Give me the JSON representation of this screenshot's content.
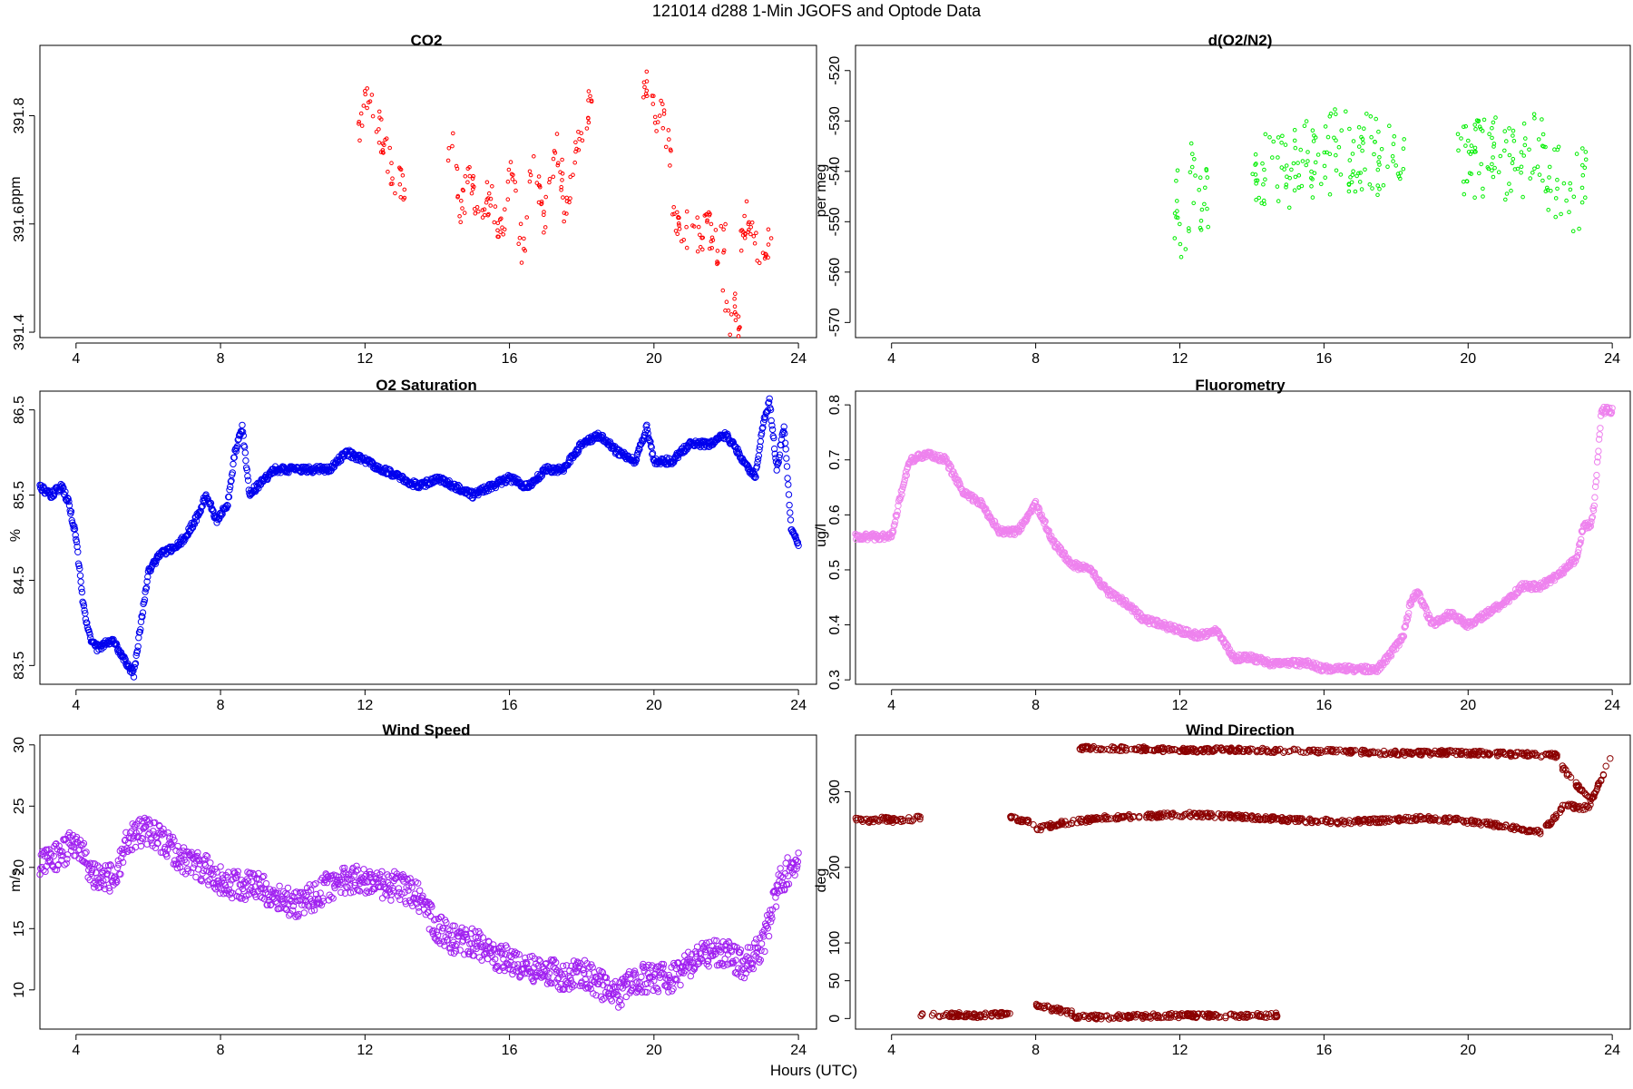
{
  "figure": {
    "title": "121014   d288   1-Min  JGOFS and Optode Data",
    "xlabel": "Hours (UTC)"
  },
  "chart_data": [
    {
      "type": "scatter",
      "title": "CO2",
      "ylabel": "ppm",
      "xlim": [
        3,
        24.5
      ],
      "ylim": [
        391.39,
        391.93
      ],
      "xticks": [
        4,
        8,
        12,
        16,
        20,
        24
      ],
      "yticks": [
        391.4,
        391.6,
        391.8
      ],
      "ytick_labels": [
        "391.4",
        "391.6",
        "391.8"
      ],
      "marker": "small-circle",
      "color": "#ff0000",
      "point_size": 1.8,
      "series": [
        {
          "segments": [
            {
              "x0": 11.8,
              "x1": 13.1,
              "y": [
                391.77,
                391.8,
                391.84,
                391.82,
                391.78,
                391.74,
                391.71,
                391.69,
                391.67,
                391.66
              ]
            },
            {
              "x0": 14.3,
              "x1": 15.4,
              "y": [
                391.7,
                391.76,
                391.68,
                391.62,
                391.66,
                391.72,
                391.63,
                391.6,
                391.64,
                391.66
              ]
            },
            {
              "x0": 15.4,
              "x1": 16.5,
              "y": [
                391.62,
                391.66,
                391.6,
                391.58,
                391.63,
                391.7,
                391.66,
                391.58,
                391.55,
                391.62
              ]
            },
            {
              "x0": 16.5,
              "x1": 17.5,
              "y": [
                391.64,
                391.68,
                391.72,
                391.66,
                391.6,
                391.65,
                391.7,
                391.75,
                391.72,
                391.66
              ]
            },
            {
              "x0": 17.5,
              "x1": 18.3,
              "y": [
                391.62,
                391.66,
                391.7,
                391.74,
                391.78,
                391.81,
                391.84
              ]
            },
            {
              "x0": 19.7,
              "x1": 20.5,
              "y": [
                391.86,
                391.84,
                391.8,
                391.82,
                391.76,
                391.72
              ]
            },
            {
              "x0": 20.5,
              "x1": 22.0,
              "y": [
                391.64,
                391.6,
                391.58,
                391.62,
                391.57,
                391.6,
                391.58,
                391.55,
                391.6
              ]
            },
            {
              "x0": 21.9,
              "x1": 22.4,
              "y": [
                391.46,
                391.42,
                391.44,
                391.41
              ]
            },
            {
              "x0": 22.4,
              "x1": 23.3,
              "y": [
                391.58,
                391.62,
                391.58,
                391.55,
                391.57,
                391.53
              ]
            }
          ],
          "noise": 0.035
        }
      ]
    },
    {
      "type": "scatter",
      "title": "d(O2/N2)",
      "ylabel": "per meg",
      "xlim": [
        3,
        24.5
      ],
      "ylim": [
        -573,
        -515
      ],
      "xticks": [
        4,
        8,
        12,
        16,
        20,
        24
      ],
      "yticks": [
        -570,
        -560,
        -550,
        -540,
        -530,
        -520
      ],
      "ytick_labels": [
        "-570",
        "-560",
        "-550",
        "-540",
        "-530",
        "-520"
      ],
      "marker": "small-circle",
      "color": "#00ee00",
      "point_size": 1.8,
      "series": [
        {
          "segments": [
            {
              "x0": 11.8,
              "x1": 12.8,
              "y": [
                -545,
                -548,
                -552,
                -542,
                -540,
                -550,
                -546
              ]
            },
            {
              "x0": 14.0,
              "x1": 16.0,
              "y": [
                -545,
                -540,
                -538,
                -536,
                -542,
                -540,
                -535,
                -538,
                -541,
                -539
              ]
            },
            {
              "x0": 16.0,
              "x1": 18.3,
              "y": [
                -538,
                -536,
                -533,
                -540,
                -537,
                -535,
                -539,
                -536,
                -538,
                -540
              ]
            },
            {
              "x0": 19.7,
              "x1": 23.3,
              "y": [
                -540,
                -538,
                -537,
                -536,
                -539,
                -538,
                -535,
                -540,
                -542,
                -544,
                -543
              ]
            }
          ],
          "noise": 8
        }
      ]
    },
    {
      "type": "scatter",
      "title": "O2 Saturation",
      "ylabel": "%",
      "xlim": [
        3,
        24.5
      ],
      "ylim": [
        83.28,
        86.72
      ],
      "xticks": [
        4,
        8,
        12,
        16,
        20,
        24
      ],
      "yticks": [
        83.5,
        84.5,
        85.5,
        86.5
      ],
      "ytick_labels": [
        "83.5",
        "84.5",
        "85.5",
        "86.5"
      ],
      "marker": "circle",
      "color": "#0000ee",
      "point_size": 3.2,
      "series": [
        {
          "x": [
            3.0,
            3.3,
            3.6,
            3.8,
            4.0,
            4.2,
            4.4,
            4.6,
            5.0,
            5.3,
            5.6,
            5.8,
            6.0,
            6.3,
            6.8,
            7.0,
            7.3,
            7.6,
            7.9,
            8.2,
            8.4,
            8.6,
            8.8,
            9.0,
            9.5,
            10.0,
            11.0,
            11.5,
            12.0,
            12.5,
            13.0,
            13.5,
            14.0,
            14.5,
            15.0,
            15.5,
            16.0,
            16.5,
            17.0,
            17.5,
            18.0,
            18.5,
            19.0,
            19.5,
            19.8,
            20.0,
            20.5,
            21.0,
            21.5,
            22.0,
            22.5,
            22.8,
            23.0,
            23.2,
            23.4,
            23.6,
            23.8,
            24.0
          ],
          "y": [
            85.6,
            85.5,
            85.6,
            85.4,
            85.0,
            84.2,
            83.8,
            83.7,
            83.8,
            83.6,
            83.4,
            84.0,
            84.6,
            84.8,
            84.9,
            85.0,
            85.2,
            85.5,
            85.2,
            85.4,
            86.0,
            86.3,
            85.5,
            85.6,
            85.8,
            85.8,
            85.8,
            86.0,
            85.9,
            85.8,
            85.7,
            85.6,
            85.7,
            85.6,
            85.5,
            85.6,
            85.7,
            85.6,
            85.8,
            85.8,
            86.1,
            86.2,
            86.0,
            85.9,
            86.3,
            85.9,
            85.9,
            86.1,
            86.1,
            86.2,
            85.9,
            85.7,
            86.3,
            86.6,
            85.8,
            86.3,
            85.1,
            84.9
          ],
          "noise": 0.04
        }
      ]
    },
    {
      "type": "scatter",
      "title": "Fluorometry",
      "ylabel": "ug/l",
      "xlim": [
        3,
        24.5
      ],
      "ylim": [
        0.292,
        0.825
      ],
      "xticks": [
        4,
        8,
        12,
        16,
        20,
        24
      ],
      "yticks": [
        0.3,
        0.4,
        0.5,
        0.6,
        0.7,
        0.8
      ],
      "ytick_labels": [
        "0.3",
        "0.4",
        "0.5",
        "0.6",
        "0.7",
        "0.8"
      ],
      "marker": "circle",
      "color": "#ee82ee",
      "point_size": 3.2,
      "series": [
        {
          "x": [
            3.0,
            4.0,
            4.2,
            4.5,
            5.0,
            5.5,
            6.0,
            6.5,
            7.0,
            7.5,
            8.0,
            8.5,
            9.0,
            9.5,
            10.0,
            10.5,
            11.0,
            11.5,
            12.0,
            12.5,
            13.0,
            13.5,
            14.0,
            14.5,
            15.0,
            15.5,
            16.0,
            16.5,
            17.0,
            17.5,
            18.0,
            18.2,
            18.4,
            18.6,
            19.0,
            19.5,
            20.0,
            20.5,
            21.0,
            21.5,
            22.0,
            22.5,
            23.0,
            23.2,
            23.4,
            23.5,
            23.7,
            24.0
          ],
          "y": [
            0.56,
            0.56,
            0.62,
            0.7,
            0.71,
            0.7,
            0.64,
            0.62,
            0.57,
            0.57,
            0.62,
            0.55,
            0.51,
            0.5,
            0.46,
            0.44,
            0.41,
            0.4,
            0.39,
            0.38,
            0.39,
            0.34,
            0.34,
            0.33,
            0.33,
            0.33,
            0.32,
            0.32,
            0.32,
            0.32,
            0.36,
            0.38,
            0.44,
            0.46,
            0.4,
            0.42,
            0.4,
            0.42,
            0.44,
            0.47,
            0.47,
            0.49,
            0.52,
            0.58,
            0.58,
            0.62,
            0.79,
            0.79
          ],
          "noise": 0.006
        }
      ]
    },
    {
      "type": "scatter",
      "title": "Wind Speed",
      "ylabel": "m/s",
      "xlim": [
        3,
        24.5
      ],
      "ylim": [
        6.8,
        30.8
      ],
      "xticks": [
        4,
        8,
        12,
        16,
        20,
        24
      ],
      "yticks": [
        10,
        15,
        20,
        25,
        30
      ],
      "ytick_labels": [
        "10",
        "15",
        "20",
        "25",
        "30"
      ],
      "marker": "circle",
      "color": "#a020f0",
      "point_size": 3.2,
      "series": [
        {
          "x": [
            3.0,
            4.0,
            4.5,
            5.0,
            5.5,
            6.0,
            6.5,
            7.0,
            7.5,
            8.0,
            8.5,
            9.0,
            9.5,
            10.0,
            10.5,
            11.0,
            11.5,
            12.0,
            12.5,
            13.0,
            13.5,
            14.0,
            14.5,
            15.0,
            15.5,
            16.0,
            16.5,
            17.0,
            17.5,
            18.0,
            18.5,
            19.0,
            19.5,
            20.0,
            20.5,
            21.0,
            21.5,
            22.0,
            22.5,
            23.0,
            23.5,
            24.0
          ],
          "y": [
            20,
            22,
            19.5,
            19,
            22.5,
            23,
            22,
            20.5,
            20,
            19,
            18.5,
            18.5,
            17.5,
            17,
            17.5,
            18.5,
            19,
            19,
            18.5,
            18.5,
            17.5,
            15,
            14,
            14,
            13,
            12.5,
            12,
            11.5,
            11,
            11.5,
            10.5,
            9.5,
            11,
            11,
            11,
            12,
            13,
            13,
            12,
            13.5,
            19,
            20.5
          ],
          "noise": 1.2
        }
      ]
    },
    {
      "type": "scatter",
      "title": "Wind Direction",
      "ylabel": "deg",
      "xlim": [
        3,
        24.5
      ],
      "ylim": [
        -14,
        375
      ],
      "xticks": [
        4,
        8,
        12,
        16,
        20,
        24
      ],
      "yticks": [
        0,
        50,
        100,
        200,
        300
      ],
      "ytick_labels": [
        "0",
        "50",
        "100",
        "200",
        "300"
      ],
      "marker": "circle",
      "color": "#8b0000",
      "point_size": 3.2,
      "series": [
        {
          "segments": [
            {
              "x0": 3.0,
              "x1": 4.8,
              "y": [
                265,
                262,
                264,
                262,
                263,
                266
              ]
            },
            {
              "x0": 4.8,
              "x1": 7.3,
              "y": [
                6,
                5,
                5,
                4,
                5,
                6
              ]
            },
            {
              "x0": 7.3,
              "x1": 8.0,
              "y": [
                265,
                262,
                258
              ]
            },
            {
              "x0": 8.0,
              "x1": 9.0,
              "y": [
                18,
                12,
                8
              ]
            },
            {
              "x0": 8.0,
              "x1": 10.0,
              "y": [
                250,
                258,
                262,
                266
              ]
            },
            {
              "x0": 9.0,
              "x1": 14.7,
              "y": [
                3,
                2,
                3,
                4,
                4,
                3,
                5
              ]
            },
            {
              "x0": 9.2,
              "x1": 22.5,
              "y": [
                358,
                357,
                355,
                356,
                354,
                353,
                351,
                352,
                350,
                348
              ]
            },
            {
              "x0": 10.0,
              "x1": 22.0,
              "y": [
                266,
                268,
                270,
                268,
                265,
                262,
                260,
                262,
                265,
                262,
                255,
                246
              ]
            },
            {
              "x0": 22.0,
              "x1": 23.4,
              "y": [
                246,
                262,
                285,
                278,
                280
              ]
            },
            {
              "x0": 22.6,
              "x1": 23.4,
              "y": [
                333,
                310,
                290
              ]
            },
            {
              "x0": 23.4,
              "x1": 24.0,
              "y": [
                285,
                318,
                350
              ]
            }
          ],
          "noise": 3
        }
      ]
    }
  ]
}
